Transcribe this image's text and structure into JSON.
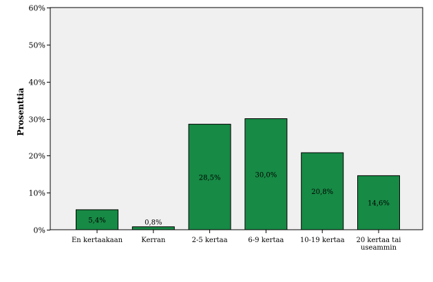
{
  "chart_data": {
    "type": "bar",
    "ylabel": "Prosenttia",
    "xlabel": "",
    "title": "",
    "categories": [
      "En kertaakaan",
      "Kerran",
      "2-5 kertaa",
      "6-9 kertaa",
      "10-19 kertaa",
      "20 kertaa tai useammin"
    ],
    "category_label_lines": [
      [
        "En kertaakaan"
      ],
      [
        "Kerran"
      ],
      [
        "2-5 kertaa"
      ],
      [
        "6-9 kertaa"
      ],
      [
        "10-19 kertaa"
      ],
      [
        "20 kertaa tai",
        "useammin"
      ]
    ],
    "values": [
      5.4,
      0.8,
      28.5,
      30.0,
      20.8,
      14.6
    ],
    "value_labels": [
      "5,4%",
      "0,8%",
      "28,5%",
      "30,0%",
      "20,8%",
      "14,6%"
    ],
    "ylim": [
      0,
      60
    ],
    "yticks": [
      0,
      10,
      20,
      30,
      40,
      50,
      60
    ],
    "ytick_labels": [
      "0%",
      "10%",
      "20%",
      "30%",
      "40%",
      "50%",
      "60%"
    ],
    "grid": false,
    "bar_color": "#178a45",
    "plot_background": "#f0f0f0"
  }
}
